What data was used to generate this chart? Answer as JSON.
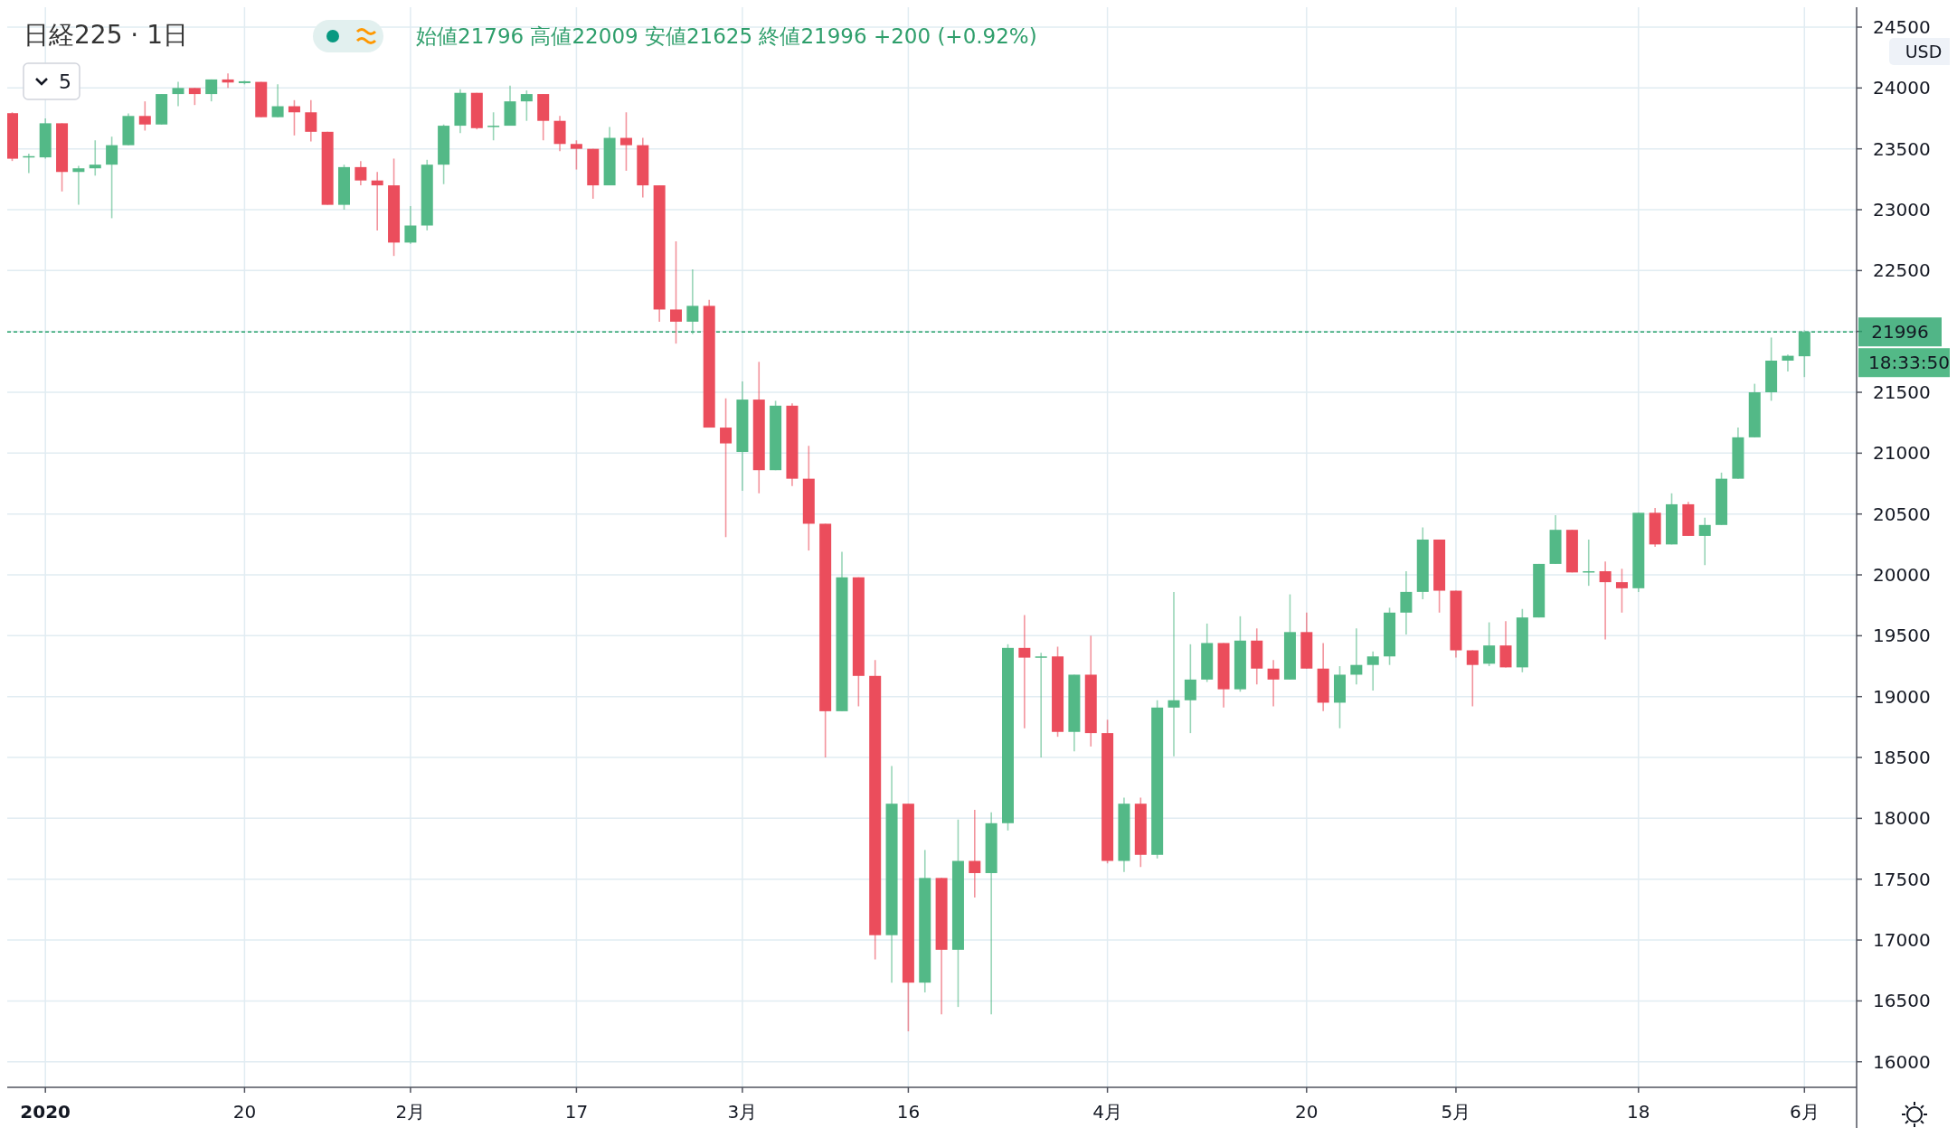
{
  "chart_data": {
    "type": "candlestick",
    "title": "日経225 · 1日",
    "subtitle": "始値21796  高値22009  安値21625  終値21996  +200 (+0.92%)",
    "annotations": [
      "5",
      "USD",
      "18:33:50"
    ],
    "categories": [
      null,
      null,
      "2020",
      null,
      null,
      null,
      null,
      null,
      null,
      null,
      null,
      null,
      null,
      null,
      "20",
      null,
      null,
      null,
      null,
      null,
      null,
      null,
      null,
      null,
      "2月",
      null,
      null,
      null,
      null,
      null,
      null,
      null,
      null,
      null,
      "17",
      null,
      null,
      null,
      null,
      null,
      null,
      null,
      null,
      null,
      "3月",
      null,
      null,
      null,
      null,
      null,
      null,
      null,
      null,
      null,
      "16",
      null,
      null,
      null,
      null,
      null,
      null,
      null,
      null,
      null,
      null,
      null,
      "4月",
      null,
      null,
      null,
      null,
      null,
      null,
      null,
      null,
      null,
      null,
      null,
      "20",
      null,
      null,
      null,
      null,
      null,
      null,
      null,
      null,
      "5月",
      null,
      null,
      null,
      null,
      null,
      null,
      null,
      null,
      null,
      null,
      "18",
      null,
      null,
      null,
      null,
      null,
      null,
      null,
      null,
      null,
      "6月"
    ],
    "ohlc": [
      [
        23793,
        23800,
        23400,
        23419
      ],
      [
        23430,
        23460,
        23300,
        23440
      ],
      [
        23430,
        23750,
        23420,
        23710
      ],
      [
        23710,
        23710,
        23150,
        23310
      ],
      [
        23310,
        23360,
        23040,
        23340
      ],
      [
        23340,
        23570,
        23280,
        23370
      ],
      [
        23370,
        23600,
        22930,
        23530
      ],
      [
        23530,
        23790,
        23530,
        23770
      ],
      [
        23770,
        23890,
        23650,
        23700
      ],
      [
        23700,
        23950,
        23700,
        23950
      ],
      [
        23950,
        24050,
        23850,
        24000
      ],
      [
        24000,
        24000,
        23860,
        23950
      ],
      [
        23950,
        24070,
        23890,
        24070
      ],
      [
        24070,
        24120,
        24000,
        24045
      ],
      [
        24040,
        24060,
        24030,
        24055
      ],
      [
        24050,
        24050,
        23760,
        23760
      ],
      [
        23760,
        24030,
        23760,
        23850
      ],
      [
        23850,
        23900,
        23610,
        23800
      ],
      [
        23800,
        23900,
        23560,
        23640
      ],
      [
        23640,
        23640,
        23040,
        23040
      ],
      [
        23040,
        23370,
        23000,
        23350
      ],
      [
        23350,
        23400,
        23200,
        23240
      ],
      [
        23240,
        23310,
        22830,
        23200
      ],
      [
        23200,
        23420,
        22620,
        22730
      ],
      [
        22730,
        23030,
        22720,
        22870
      ],
      [
        22870,
        23410,
        22830,
        23370
      ],
      [
        23370,
        23700,
        23210,
        23690
      ],
      [
        23690,
        23990,
        23630,
        23960
      ],
      [
        23960,
        23960,
        23660,
        23670
      ],
      [
        23680,
        23800,
        23570,
        23690
      ],
      [
        23690,
        24020,
        23690,
        23890
      ],
      [
        23890,
        23980,
        23730,
        23950
      ],
      [
        23950,
        23950,
        23570,
        23730
      ],
      [
        23730,
        23770,
        23480,
        23540
      ],
      [
        23540,
        23570,
        23330,
        23500
      ],
      [
        23500,
        23500,
        23090,
        23200
      ],
      [
        23200,
        23680,
        23200,
        23590
      ],
      [
        23590,
        23800,
        23320,
        23530
      ],
      [
        23530,
        23590,
        23100,
        23200
      ],
      [
        23200,
        23200,
        22080,
        22180
      ],
      [
        22180,
        22740,
        21900,
        22080
      ],
      [
        22080,
        22510,
        21980,
        22210
      ],
      [
        22210,
        22260,
        21210,
        21210
      ],
      [
        21210,
        21450,
        20310,
        21080
      ],
      [
        21010,
        21590,
        20690,
        21440
      ],
      [
        21440,
        21750,
        20670,
        20860
      ],
      [
        20860,
        21430,
        20860,
        21390
      ],
      [
        21390,
        21410,
        20730,
        20790
      ],
      [
        20790,
        21060,
        20200,
        20420
      ],
      [
        20420,
        20420,
        18500,
        18880
      ],
      [
        18880,
        20190,
        18880,
        19980
      ],
      [
        19980,
        19980,
        18920,
        19170
      ],
      [
        19170,
        19300,
        16840,
        17040
      ],
      [
        17040,
        18430,
        16650,
        18120
      ],
      [
        18120,
        18120,
        16250,
        16650
      ],
      [
        16650,
        17740,
        16570,
        17510
      ],
      [
        17510,
        17510,
        16390,
        16920
      ],
      [
        16920,
        17990,
        16450,
        17650
      ],
      [
        17650,
        18070,
        17350,
        17550
      ],
      [
        17550,
        18050,
        16390,
        17960
      ],
      [
        17960,
        19430,
        17900,
        19400
      ],
      [
        19400,
        19670,
        18740,
        19320
      ],
      [
        19320,
        19360,
        18500,
        19330
      ],
      [
        19330,
        19410,
        18670,
        18710
      ],
      [
        18710,
        19180,
        18550,
        19180
      ],
      [
        19180,
        19500,
        18590,
        18700
      ],
      [
        18700,
        18810,
        17630,
        17650
      ],
      [
        17650,
        18170,
        17560,
        18120
      ],
      [
        18120,
        18170,
        17600,
        17700
      ],
      [
        17700,
        18970,
        17670,
        18910
      ],
      [
        18910,
        19860,
        18510,
        18970
      ],
      [
        18970,
        19430,
        18700,
        19140
      ],
      [
        19140,
        19600,
        19120,
        19440
      ],
      [
        19440,
        19440,
        18910,
        19060
      ],
      [
        19060,
        19660,
        19040,
        19460
      ],
      [
        19460,
        19560,
        19100,
        19230
      ],
      [
        19230,
        19300,
        18920,
        19140
      ],
      [
        19140,
        19840,
        19140,
        19530
      ],
      [
        19530,
        19690,
        19230,
        19230
      ],
      [
        19230,
        19440,
        18880,
        18950
      ],
      [
        18950,
        19250,
        18740,
        19180
      ],
      [
        19180,
        19560,
        19100,
        19260
      ],
      [
        19260,
        19370,
        19050,
        19330
      ],
      [
        19330,
        19730,
        19260,
        19690
      ],
      [
        19690,
        20030,
        19510,
        19860
      ],
      [
        19860,
        20390,
        19800,
        20290
      ],
      [
        20290,
        20290,
        19690,
        19870
      ],
      [
        19870,
        19870,
        19320,
        19380
      ],
      [
        19380,
        19380,
        18920,
        19260
      ],
      [
        19270,
        19610,
        19250,
        19420
      ],
      [
        19420,
        19620,
        19240,
        19240
      ],
      [
        19240,
        19720,
        19200,
        19650
      ],
      [
        19650,
        20090,
        19650,
        20090
      ],
      [
        20090,
        20490,
        20090,
        20370
      ],
      [
        20370,
        20370,
        20020,
        20020
      ],
      [
        20020,
        20290,
        19910,
        20030
      ],
      [
        20030,
        20110,
        19470,
        19940
      ],
      [
        19940,
        20050,
        19690,
        19890
      ],
      [
        19890,
        20510,
        19860,
        20510
      ],
      [
        20510,
        20550,
        20230,
        20250
      ],
      [
        20250,
        20670,
        20250,
        20580
      ],
      [
        20580,
        20600,
        20320,
        20320
      ],
      [
        20320,
        20470,
        20080,
        20410
      ],
      [
        20410,
        20840,
        20410,
        20790
      ],
      [
        20790,
        21210,
        20790,
        21130
      ],
      [
        21130,
        21570,
        21130,
        21500
      ],
      [
        21500,
        21950,
        21430,
        21760
      ],
      [
        21760,
        21810,
        21670,
        21800
      ],
      [
        21796,
        22009,
        21625,
        21996
      ]
    ],
    "colors": [
      "#eb4d5c",
      "#53b987",
      "#53b987",
      "#eb4d5c",
      "#53b987",
      "#53b987",
      "#53b987",
      "#53b987",
      "#eb4d5c",
      "#53b987",
      "#53b987",
      "#eb4d5c",
      "#53b987",
      "#eb4d5c",
      "#53b987",
      "#eb4d5c",
      "#53b987",
      "#eb4d5c",
      "#eb4d5c",
      "#eb4d5c",
      "#53b987",
      "#eb4d5c",
      "#eb4d5c",
      "#eb4d5c",
      "#53b987",
      "#53b987",
      "#53b987",
      "#53b987",
      "#eb4d5c",
      "#53b987",
      "#53b987",
      "#53b987",
      "#eb4d5c",
      "#eb4d5c",
      "#eb4d5c",
      "#eb4d5c",
      "#53b987",
      "#eb4d5c",
      "#eb4d5c",
      "#eb4d5c",
      "#eb4d5c",
      "#53b987",
      "#eb4d5c",
      "#eb4d5c",
      "#53b987",
      "#eb4d5c",
      "#53b987",
      "#eb4d5c",
      "#eb4d5c",
      "#eb4d5c",
      "#53b987",
      "#eb4d5c",
      "#eb4d5c",
      "#53b987",
      "#eb4d5c",
      "#53b987",
      "#eb4d5c",
      "#53b987",
      "#eb4d5c",
      "#53b987",
      "#53b987",
      "#eb4d5c",
      "#53b987",
      "#eb4d5c",
      "#53b987",
      "#eb4d5c",
      "#eb4d5c",
      "#53b987",
      "#eb4d5c",
      "#53b987",
      "#53b987",
      "#53b987",
      "#53b987",
      "#eb4d5c",
      "#53b987",
      "#eb4d5c",
      "#eb4d5c",
      "#53b987",
      "#eb4d5c",
      "#eb4d5c",
      "#53b987",
      "#53b987",
      "#53b987",
      "#53b987",
      "#53b987",
      "#53b987",
      "#eb4d5c",
      "#eb4d5c",
      "#eb4d5c",
      "#53b987",
      "#eb4d5c",
      "#53b987",
      "#53b987",
      "#53b987",
      "#eb4d5c",
      "#53b987",
      "#eb4d5c",
      "#eb4d5c",
      "#53b987",
      "#eb4d5c",
      "#53b987",
      "#eb4d5c",
      "#53b987",
      "#53b987",
      "#53b987",
      "#53b987",
      "#53b987",
      "#53b987",
      "#53b987"
    ],
    "ylim": [
      15790,
      24500
    ],
    "yticks": [
      16000,
      16500,
      17000,
      17500,
      18000,
      18500,
      19000,
      19500,
      20000,
      20500,
      21000,
      21500,
      {
        "value": 22000,
        "label": null
      },
      22500,
      23000,
      23500,
      24000,
      24500
    ],
    "ref_lines": [
      {
        "axis": "y",
        "value": 21996,
        "label": "21996",
        "color": "#26a269",
        "line_style": "dashed"
      }
    ],
    "grid": true
  }
}
